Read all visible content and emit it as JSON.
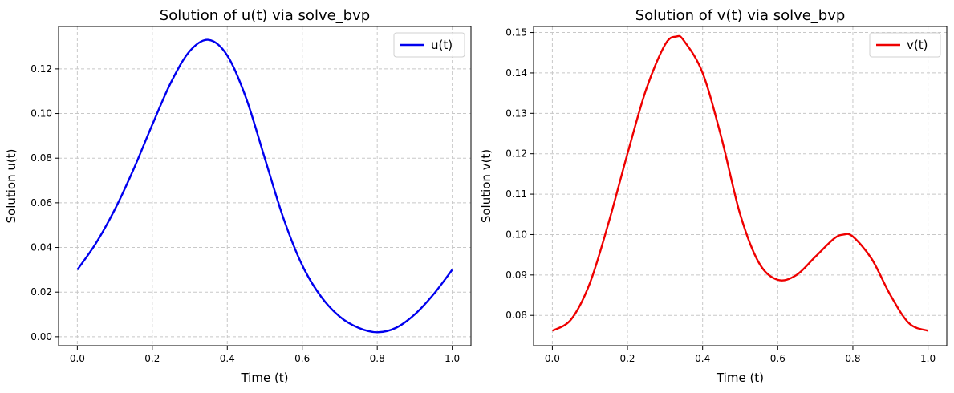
{
  "chart_data": [
    {
      "type": "line",
      "title": "Solution of u(t) via solve_bvp",
      "xlabel": "Time (t)",
      "ylabel": "Solution u(t)",
      "xlim": [
        -0.05,
        1.05
      ],
      "ylim": [
        -0.004,
        0.139
      ],
      "xticks": [
        0.0,
        0.2,
        0.4,
        0.6,
        0.8,
        1.0
      ],
      "xtick_labels": [
        "0.0",
        "0.2",
        "0.4",
        "0.6",
        "0.8",
        "1.0"
      ],
      "yticks": [
        0.0,
        0.02,
        0.04,
        0.06,
        0.08,
        0.1,
        0.12
      ],
      "ytick_labels": [
        "0.00",
        "0.02",
        "0.04",
        "0.06",
        "0.08",
        "0.10",
        "0.12"
      ],
      "grid": true,
      "legend_position": "top-right",
      "series": [
        {
          "name": "u(t)",
          "color": "#0000ee",
          "x": [
            0.0,
            0.05,
            0.1,
            0.15,
            0.2,
            0.25,
            0.3,
            0.35,
            0.4,
            0.45,
            0.5,
            0.55,
            0.6,
            0.65,
            0.7,
            0.75,
            0.8,
            0.85,
            0.9,
            0.95,
            1.0
          ],
          "y": [
            0.03,
            0.042,
            0.057,
            0.075,
            0.095,
            0.114,
            0.128,
            0.133,
            0.126,
            0.107,
            0.08,
            0.053,
            0.032,
            0.018,
            0.009,
            0.004,
            0.002,
            0.004,
            0.01,
            0.019,
            0.03
          ]
        }
      ]
    },
    {
      "type": "line",
      "title": "Solution of v(t) via solve_bvp",
      "xlabel": "Time (t)",
      "ylabel": "Solution v(t)",
      "xlim": [
        -0.05,
        1.05
      ],
      "ylim": [
        0.0725,
        0.1515
      ],
      "xticks": [
        0.0,
        0.2,
        0.4,
        0.6,
        0.8,
        1.0
      ],
      "xtick_labels": [
        "0.0",
        "0.2",
        "0.4",
        "0.6",
        "0.8",
        "1.0"
      ],
      "yticks": [
        0.08,
        0.09,
        0.1,
        0.11,
        0.12,
        0.13,
        0.14,
        0.15
      ],
      "ytick_labels": [
        "0.08",
        "0.09",
        "0.10",
        "0.11",
        "0.12",
        "0.13",
        "0.14",
        "0.15"
      ],
      "grid": true,
      "legend_position": "top-right",
      "series": [
        {
          "name": "v(t)",
          "color": "#ee0000",
          "x": [
            0.0,
            0.05,
            0.1,
            0.15,
            0.2,
            0.25,
            0.3,
            0.33,
            0.35,
            0.4,
            0.45,
            0.5,
            0.55,
            0.6,
            0.65,
            0.7,
            0.75,
            0.775,
            0.8,
            0.85,
            0.9,
            0.95,
            1.0
          ],
          "y": [
            0.0762,
            0.079,
            0.088,
            0.103,
            0.12,
            0.136,
            0.147,
            0.149,
            0.148,
            0.14,
            0.124,
            0.105,
            0.093,
            0.0888,
            0.09,
            0.0945,
            0.099,
            0.1,
            0.0995,
            0.094,
            0.085,
            0.078,
            0.0762
          ]
        }
      ]
    }
  ]
}
